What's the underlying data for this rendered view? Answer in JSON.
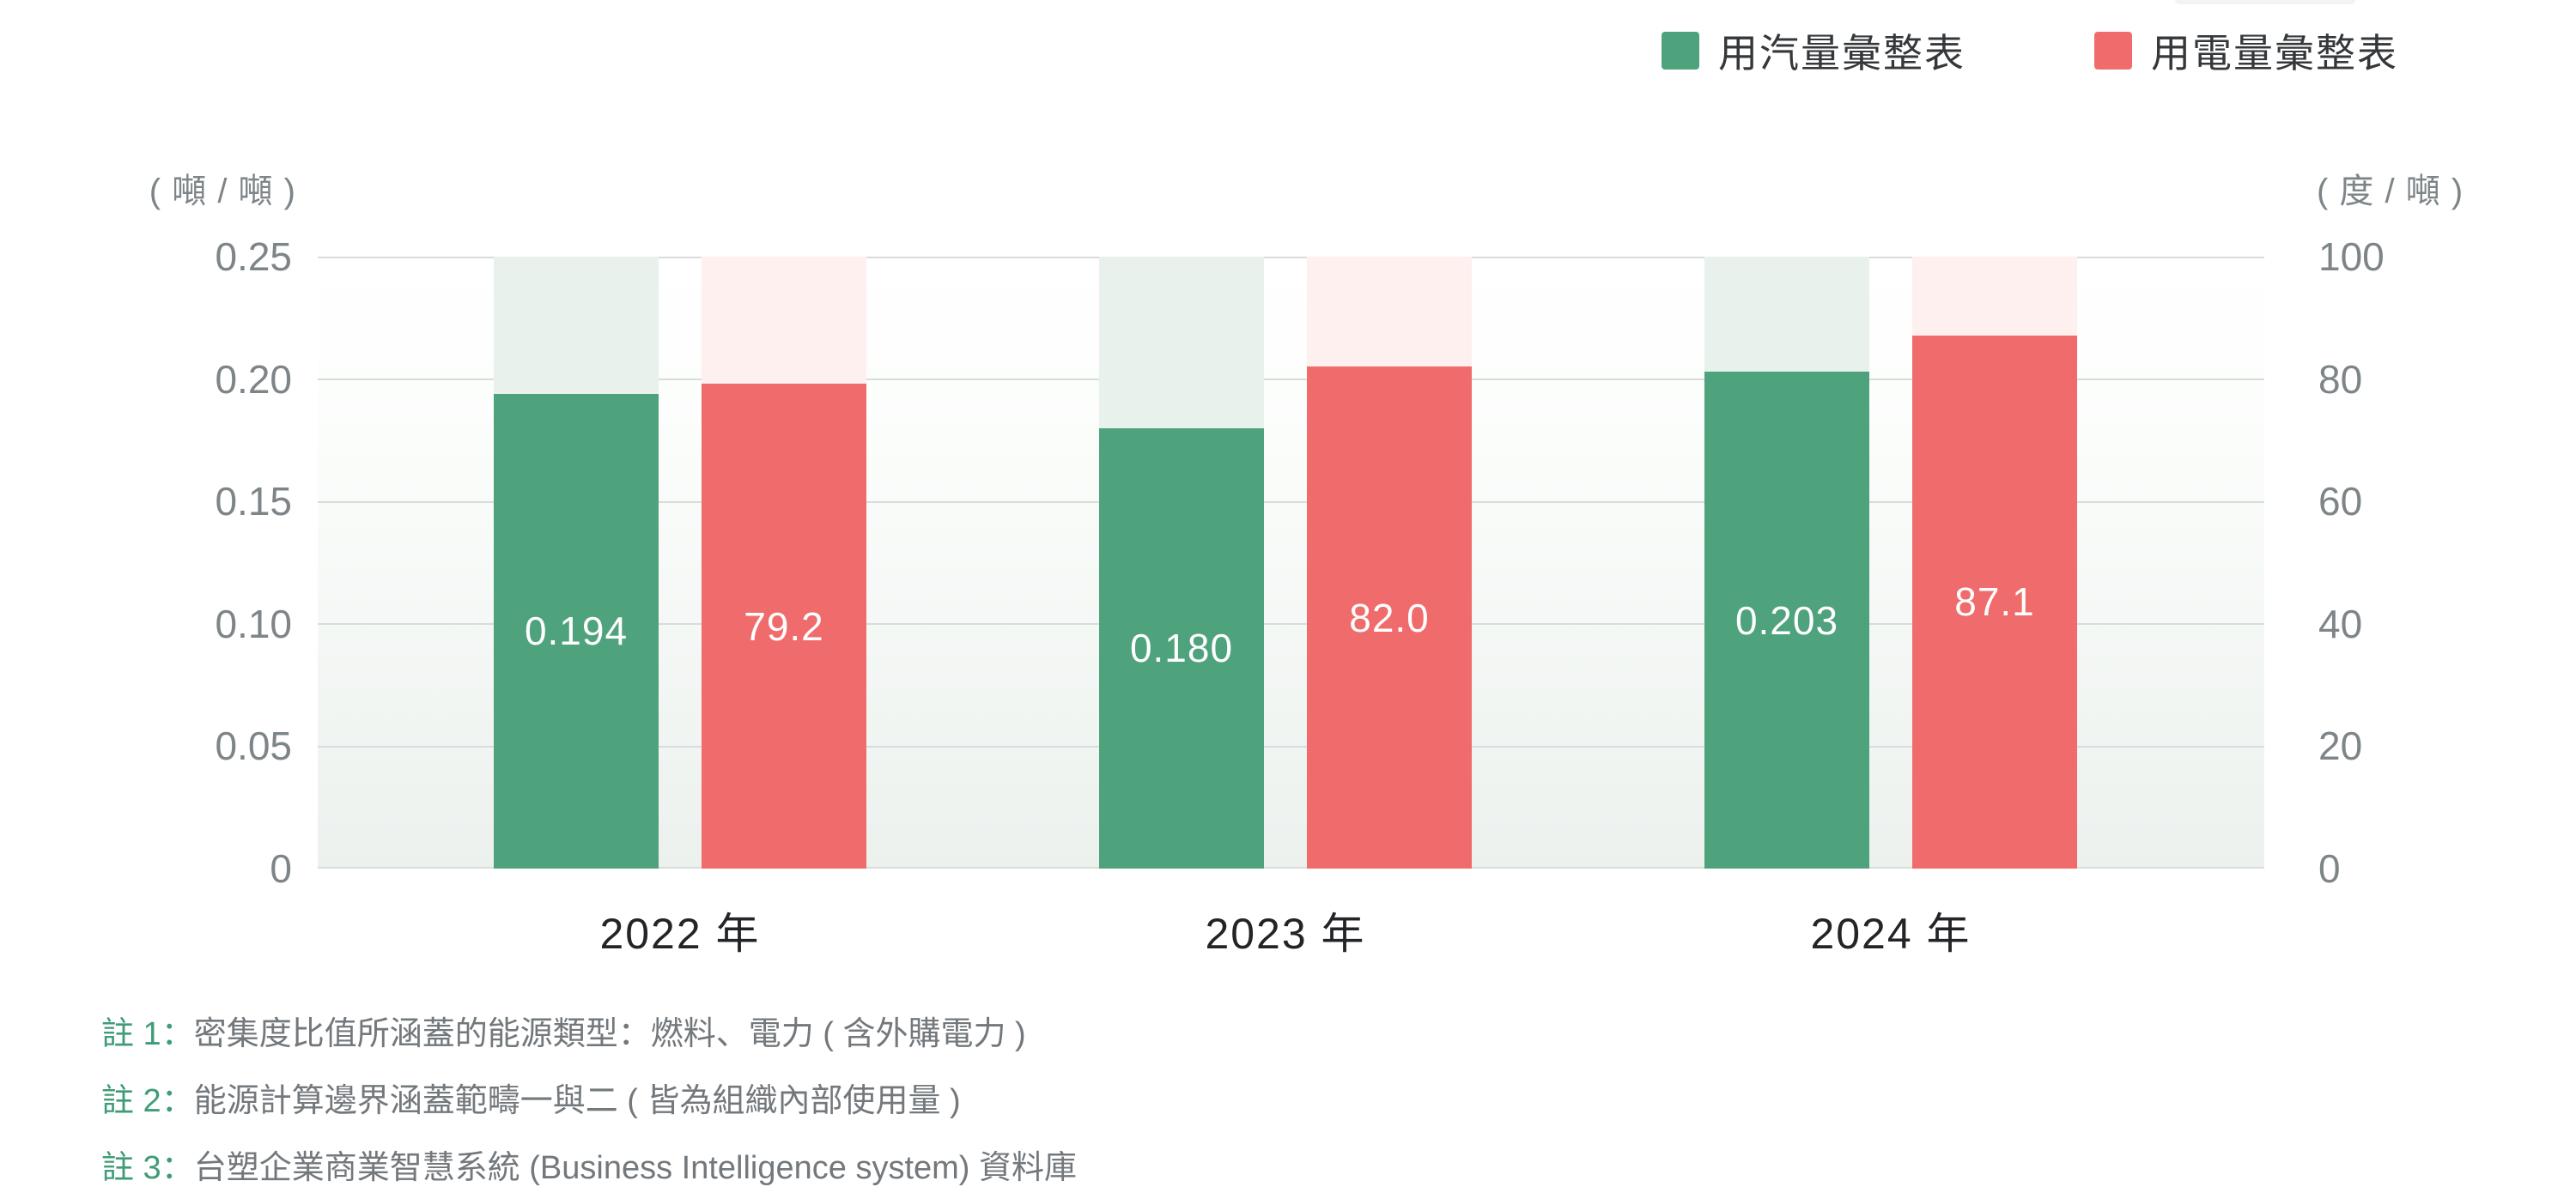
{
  "chart_data": {
    "type": "bar",
    "categories": [
      "2022 年",
      "2023 年",
      "2024 年"
    ],
    "series": [
      {
        "name": "用汽量彙整表",
        "axis": "left",
        "color": "#4ea27c",
        "band_color": "#e9f1ec",
        "values": [
          0.194,
          0.18,
          0.203
        ],
        "labels": [
          "0.194",
          "0.180",
          "0.203"
        ]
      },
      {
        "name": "用電量彙整表",
        "axis": "right",
        "color": "#f06c6c",
        "band_color": "#fdf0ef",
        "values": [
          79.2,
          82.0,
          87.1
        ],
        "labels": [
          "79.2",
          "82.0",
          "87.1"
        ]
      }
    ],
    "left_axis": {
      "unit": "( 噸 / 噸 )",
      "range": [
        0,
        0.25
      ],
      "ticks": [
        "0.25",
        "0.20",
        "0.15",
        "0.10",
        "0.05",
        "0"
      ]
    },
    "right_axis": {
      "unit": "( 度 / 噸 )",
      "range": [
        0,
        100
      ],
      "ticks": [
        "100",
        "80",
        "60",
        "40",
        "20",
        "0"
      ]
    },
    "grid": true,
    "legend_position": "top-right"
  },
  "legend": {
    "items": [
      {
        "label": "用汽量彙整表",
        "color": "#4ea27c"
      },
      {
        "label": "用電量彙整表",
        "color": "#f06c6c"
      }
    ]
  },
  "notes": [
    {
      "prefix": "註 1：",
      "text": "密集度比值所涵蓋的能源類型：燃料、電力 ( 含外購電力 )"
    },
    {
      "prefix": "註 2：",
      "text": "能源計算邊界涵蓋範疇一與二 ( 皆為組織內部使用量 )"
    },
    {
      "prefix": "註 3：",
      "text": "台塑企業商業智慧系統 (Business Intelligence system) 資料庫"
    }
  ],
  "colors": {
    "steam_green": "#4ea27c",
    "electricity_red": "#f06c6c",
    "steam_band": "#e9f1ec",
    "electricity_band": "#fdf0ef",
    "gridline": "#d9ddda",
    "axis_text": "#7e8588",
    "xlabel_text": "#222427",
    "note_green": "#3f9c77",
    "note_gray": "#73787c"
  }
}
